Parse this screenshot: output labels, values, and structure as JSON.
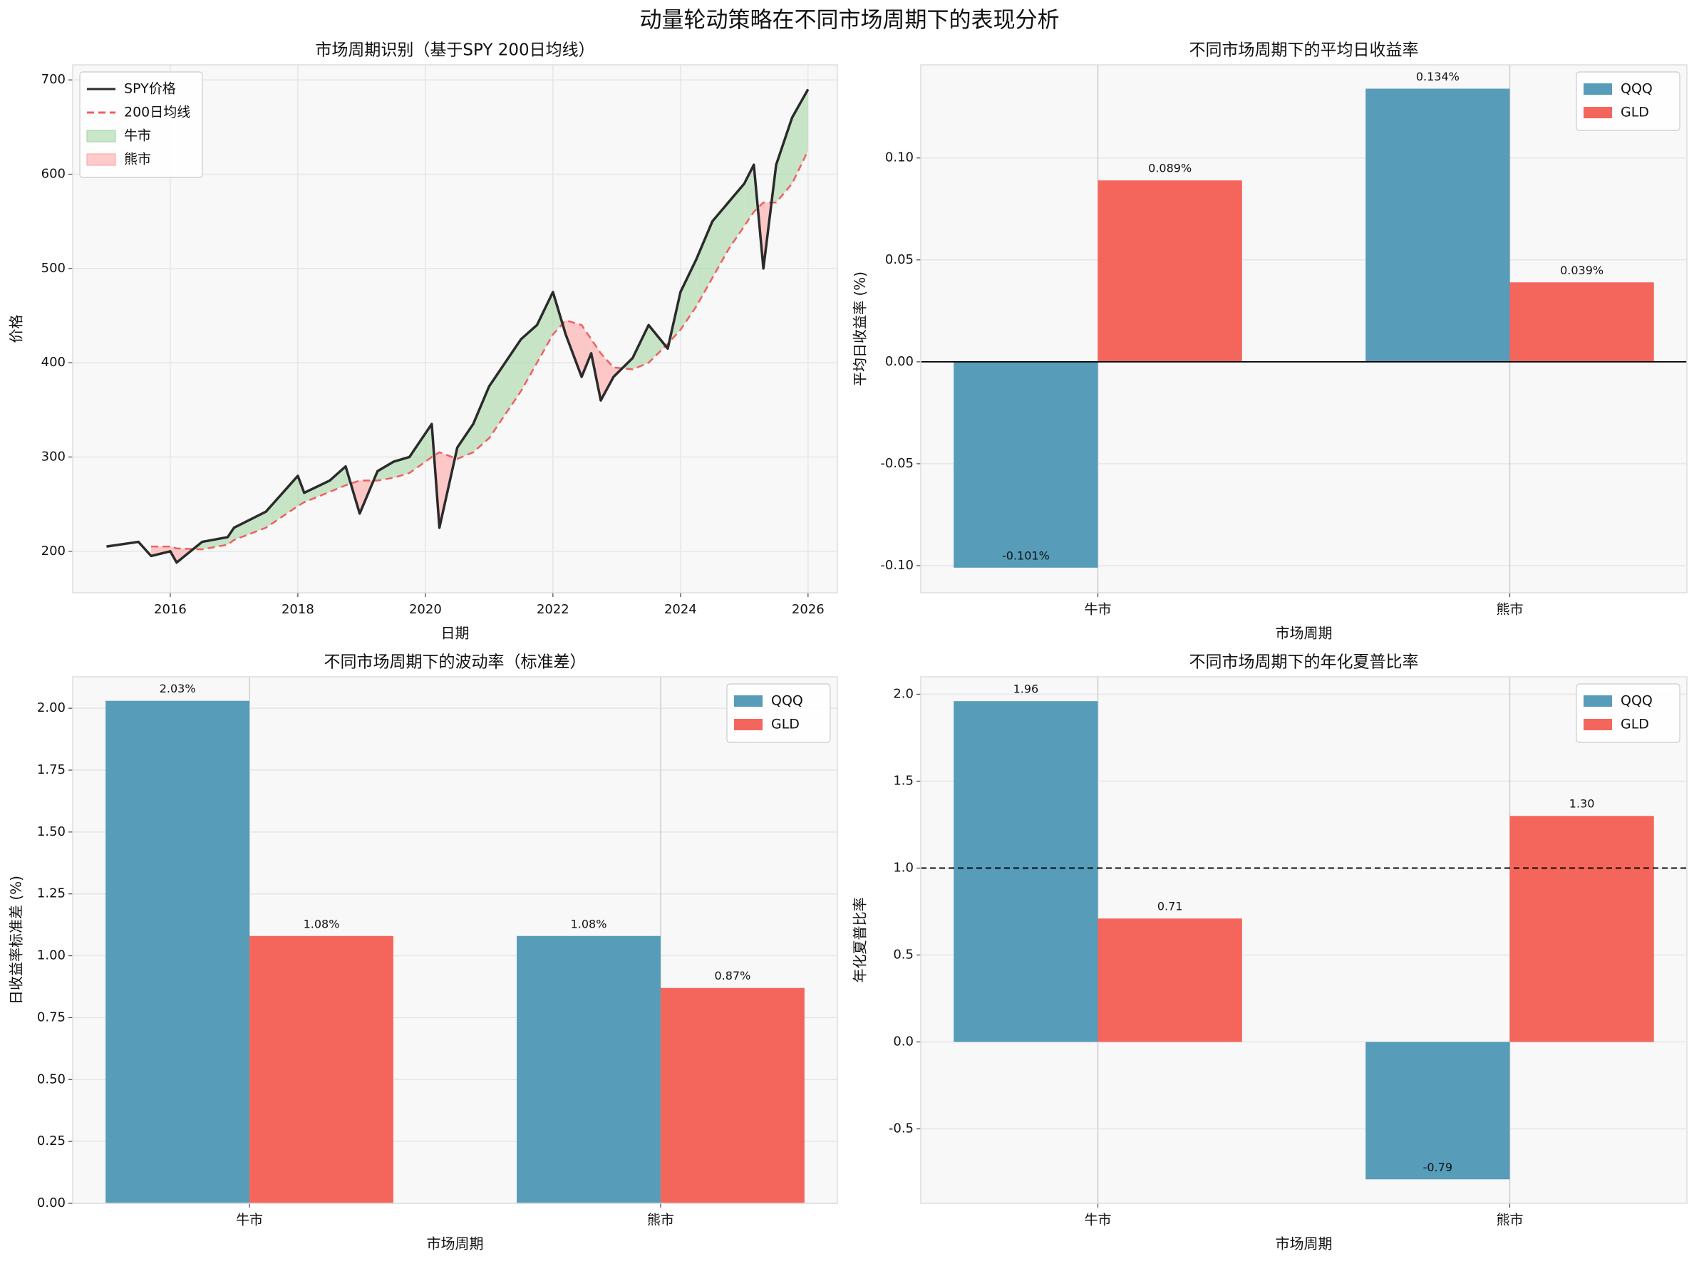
{
  "title": "动量轮动策略在不同市场周期下的表现分析",
  "chart_data": [
    {
      "type": "line",
      "title": "市场周期识别（基于SPY 200日均线）",
      "xlabel": "日期",
      "ylabel": "价格",
      "x": [
        2015.0,
        2015.5,
        2015.7,
        2016.0,
        2016.1,
        2016.5,
        2016.9,
        2017.0,
        2017.5,
        2018.0,
        2018.1,
        2018.5,
        2018.75,
        2018.97,
        2019.25,
        2019.5,
        2019.75,
        2020.0,
        2020.1,
        2020.22,
        2020.5,
        2020.75,
        2021.0,
        2021.5,
        2021.75,
        2022.0,
        2022.2,
        2022.45,
        2022.6,
        2022.75,
        2022.95,
        2023.25,
        2023.5,
        2023.8,
        2024.0,
        2024.25,
        2024.5,
        2024.75,
        2025.0,
        2025.15,
        2025.3,
        2025.5,
        2025.75,
        2026.0
      ],
      "series": [
        {
          "name": "SPY价格",
          "color": "#2b2b2b",
          "style": "solid",
          "values": [
            205,
            210,
            195,
            200,
            188,
            210,
            215,
            225,
            242,
            280,
            262,
            275,
            290,
            240,
            285,
            295,
            300,
            325,
            335,
            225,
            310,
            335,
            375,
            425,
            440,
            475,
            430,
            385,
            410,
            360,
            385,
            405,
            440,
            415,
            475,
            510,
            550,
            570,
            590,
            610,
            500,
            610,
            660,
            690
          ]
        },
        {
          "name": "200日均线",
          "color": "#f06060",
          "style": "dashed",
          "values": [
            null,
            null,
            205,
            205,
            203,
            202,
            207,
            212,
            225,
            248,
            252,
            263,
            270,
            275,
            275,
            278,
            283,
            295,
            300,
            305,
            298,
            305,
            320,
            370,
            400,
            430,
            445,
            440,
            425,
            410,
            395,
            393,
            400,
            420,
            435,
            460,
            490,
            520,
            545,
            560,
            570,
            570,
            590,
            625
          ]
        }
      ],
      "fills": [
        {
          "name": "牛市",
          "color": "#9fd39f"
        },
        {
          "name": "熊市",
          "color": "#ff9f9f"
        }
      ],
      "xlim": [
        2014.47,
        2026.46
      ],
      "xticks": [
        2016,
        2018,
        2020,
        2022,
        2024,
        2026
      ],
      "ylim": [
        156,
        716
      ],
      "yticks": [
        200,
        300,
        400,
        500,
        600,
        700
      ],
      "grid": true,
      "legend": "upper left"
    },
    {
      "type": "bar",
      "title": "不同市场周期下的平均日收益率",
      "xlabel": "市场周期",
      "ylabel": "平均日收益率 (%)",
      "categories": [
        "牛市",
        "熊市"
      ],
      "series": [
        {
          "name": "QQQ",
          "color": "#579cb9",
          "values": [
            -0.101,
            0.134
          ],
          "value_labels": [
            "-0.101%",
            "0.134%"
          ]
        },
        {
          "name": "GLD",
          "color": "#f4665c",
          "values": [
            0.089,
            0.039
          ],
          "value_labels": [
            "0.089%",
            "0.039%"
          ]
        }
      ],
      "ylim": [
        -0.1133,
        0.1457
      ],
      "yticks": [
        {
          "value": -0.1,
          "label": "-0.10"
        },
        {
          "value": -0.05,
          "label": "-0.05"
        },
        {
          "value": 0,
          "label": "0.00"
        },
        {
          "value": 0.05,
          "label": "0.05"
        },
        {
          "value": 0.1,
          "label": "0.10"
        }
      ],
      "reference_line": {
        "value": 0,
        "color": "#000000",
        "style": "solid"
      },
      "grid": true,
      "legend": "upper right"
    },
    {
      "type": "bar",
      "title": "不同市场周期下的波动率（标准差）",
      "xlabel": "市场周期",
      "ylabel": "日收益率标准差 (%)",
      "categories": [
        "牛市",
        "熊市"
      ],
      "series": [
        {
          "name": "QQQ",
          "color": "#579cb9",
          "values": [
            2.03,
            1.08
          ],
          "value_labels": [
            "2.03%",
            "1.08%"
          ]
        },
        {
          "name": "GLD",
          "color": "#f4665c",
          "values": [
            1.08,
            0.87
          ],
          "value_labels": [
            "1.08%",
            "0.87%"
          ]
        }
      ],
      "ylim": [
        0,
        2.127
      ],
      "yticks": [
        {
          "value": 0,
          "label": "0.00"
        },
        0.25,
        {
          "value": 0.5,
          "label": "0.50"
        },
        0.75,
        {
          "value": 1,
          "label": "1.00"
        },
        1.25,
        {
          "value": 1.5,
          "label": "1.50"
        },
        1.75,
        {
          "value": 2,
          "label": "2.00"
        }
      ],
      "grid": true,
      "legend": "upper right"
    },
    {
      "type": "bar",
      "title": "不同市场周期下的年化夏普比率",
      "xlabel": "市场周期",
      "ylabel": "年化夏普比率",
      "categories": [
        "牛市",
        "熊市"
      ],
      "series": [
        {
          "name": "QQQ",
          "color": "#579cb9",
          "values": [
            1.96,
            -0.79
          ],
          "value_labels": [
            "1.96",
            "-0.79"
          ]
        },
        {
          "name": "GLD",
          "color": "#f4665c",
          "values": [
            0.71,
            1.3
          ],
          "value_labels": [
            "0.71",
            "1.30"
          ]
        }
      ],
      "ylim": [
        -0.928,
        2.1
      ],
      "yticks": [
        -0.5,
        {
          "value": 0,
          "label": "0.0"
        },
        0.5,
        {
          "value": 1,
          "label": "1.0"
        },
        1.5,
        {
          "value": 2,
          "label": "2.0"
        }
      ],
      "reference_line": {
        "value": 1,
        "color": "#000000",
        "style": "dashed"
      },
      "grid": true,
      "legend": "upper right"
    }
  ]
}
